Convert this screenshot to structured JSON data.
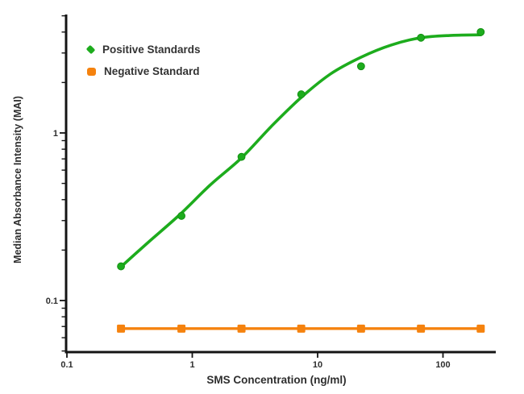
{
  "chart_data": {
    "type": "scatter",
    "title": "",
    "xlabel": "SMS Concentration (ng/ml)",
    "ylabel": "Median Absorbance Intensity (MAI)",
    "x_scale": "log",
    "y_scale": "log",
    "xlim": [
      0.1,
      268
    ],
    "ylim": [
      0.05,
      5.15
    ],
    "grid": false,
    "legend_position": "top-left",
    "axis_color": "#141414",
    "text_color": "#2e2e2e",
    "x_ticks": [
      {
        "v": 0.1,
        "label": "0.1"
      },
      {
        "v": 1,
        "label": "1"
      },
      {
        "v": 10,
        "label": "10"
      },
      {
        "v": 100,
        "label": "100"
      }
    ],
    "y_ticks": [
      {
        "v": 0.1,
        "label": "0.1"
      },
      {
        "v": 1,
        "label": "1"
      }
    ],
    "x": [
      0.27,
      0.82,
      2.47,
      7.4,
      22.2,
      66.7,
      200
    ],
    "series": [
      {
        "name": "Positive Standards",
        "color": "#1dac1d",
        "marker": "circle",
        "values": [
          0.16,
          0.32,
          0.72,
          1.7,
          2.5,
          3.7,
          4.0
        ],
        "fit_curve": {
          "x": [
            0.27,
            0.45,
            0.8,
            1.38,
            2.47,
            4.25,
            7.4,
            12.7,
            22.2,
            38.8,
            66.7,
            117,
            200
          ],
          "y": [
            0.159,
            0.224,
            0.327,
            0.487,
            0.71,
            1.09,
            1.63,
            2.25,
            2.83,
            3.35,
            3.7,
            3.82,
            3.85
          ]
        }
      },
      {
        "name": "Negative Standard",
        "color": "#f5820e",
        "marker": "square",
        "values": [
          0.068,
          0.068,
          0.068,
          0.068,
          0.068,
          0.068,
          0.068
        ]
      }
    ]
  }
}
